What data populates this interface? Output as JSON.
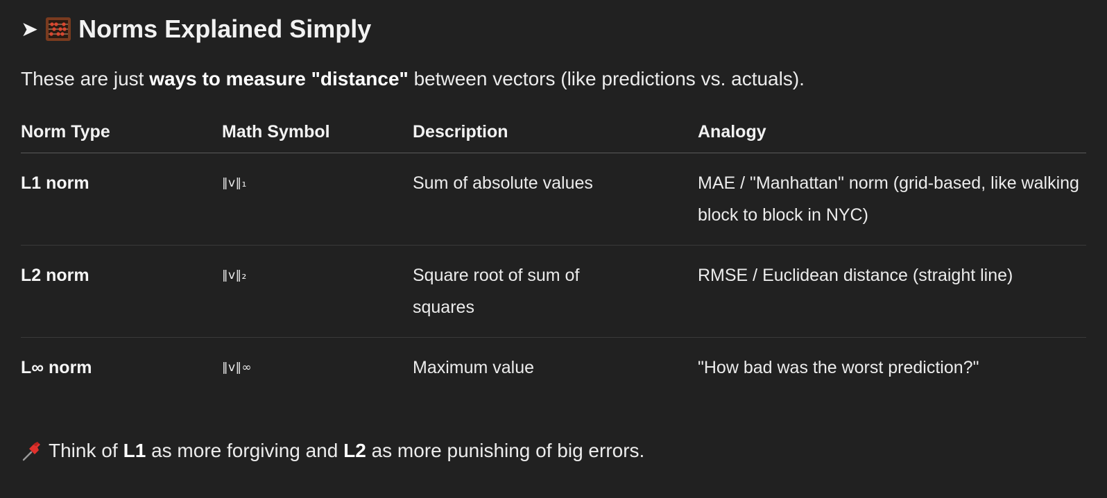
{
  "heading": {
    "arrow": "➤",
    "icon": "abacus-icon",
    "title": "Norms Explained Simply"
  },
  "intro": {
    "before": "These are just ",
    "bold": "ways to measure \"distance\"",
    "after": " between vectors (like predictions vs. actuals)."
  },
  "table": {
    "headers": [
      "Norm Type",
      "Math Symbol",
      "Description",
      "Analogy"
    ],
    "rows": [
      {
        "name": "L1 norm",
        "symbol": "‖v‖₁",
        "description": "Sum of absolute values",
        "analogy": "MAE / \"Manhattan\" norm (grid-based, like walking block to block in NYC)"
      },
      {
        "name": "L2 norm",
        "symbol": "‖v‖₂",
        "description": "Square root of sum of squares",
        "analogy": "RMSE / Euclidean distance (straight line)"
      },
      {
        "name": "L∞ norm",
        "symbol": "‖v‖∞",
        "description": "Maximum value",
        "analogy": "\"How bad was the worst prediction?\""
      }
    ]
  },
  "note": {
    "icon": "pushpin-icon",
    "p1": "Think of ",
    "b1": "L1",
    "p2": " as more forgiving and ",
    "b2": "L2",
    "p3": " as more punishing of big errors."
  },
  "colors": {
    "background": "#212121",
    "text": "#ececec",
    "divider": "#5a5a5a"
  }
}
